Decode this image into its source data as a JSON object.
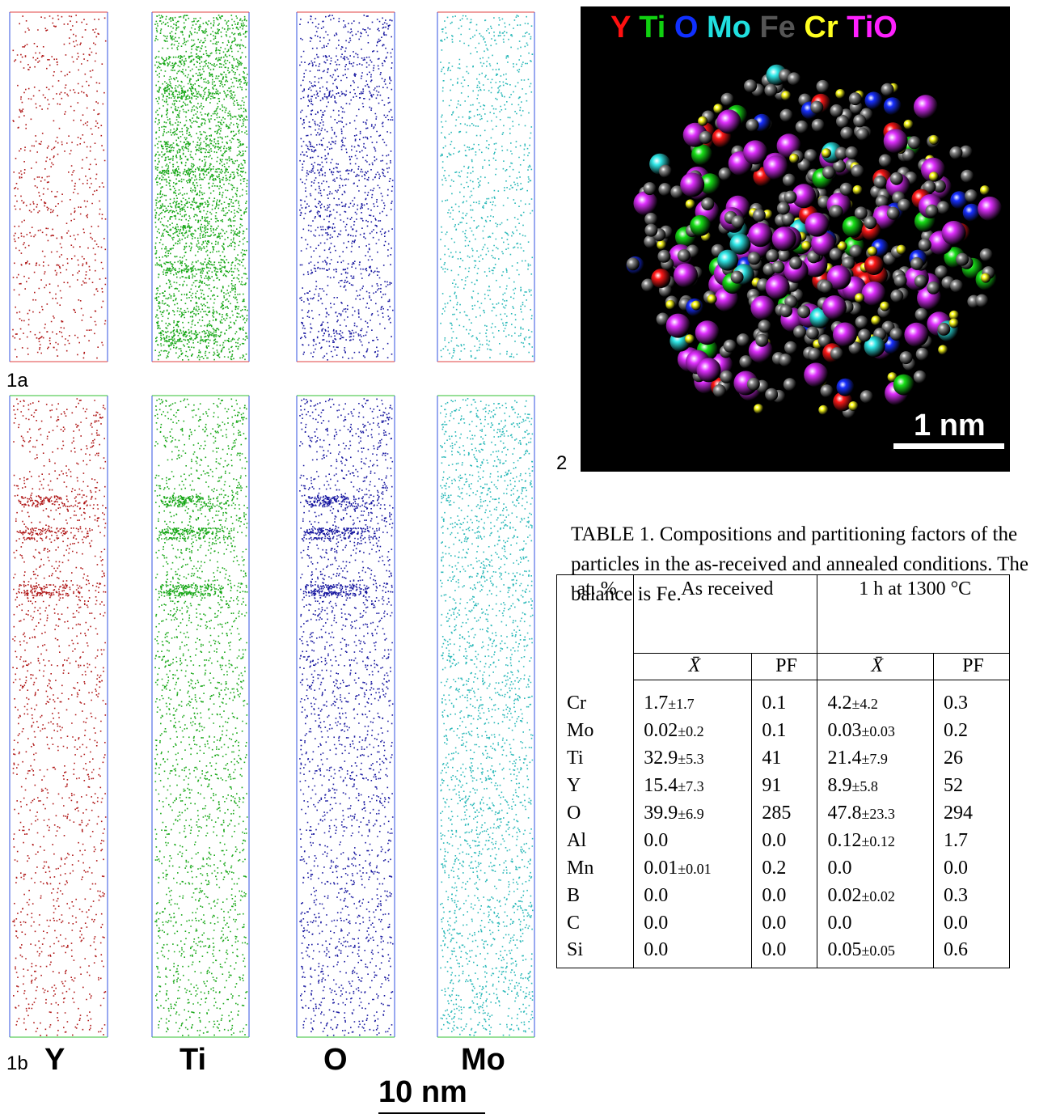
{
  "figure1": {
    "panel_a": "1a",
    "panel_b": "1b",
    "elements": [
      "Y",
      "Ti",
      "O",
      "Mo"
    ],
    "scale": "10 nm"
  },
  "figure2": {
    "panel": "2",
    "legend": [
      "Y",
      "Ti",
      "O",
      "Mo",
      "Fe",
      "Cr",
      "TiO"
    ],
    "scale": "1 nm"
  },
  "table": {
    "caption": "TABLE 1. Compositions and partitioning factors of the particles in the as-received and annealed conditions.  The balance is Fe.",
    "header": {
      "unit": "at. %",
      "groups": [
        "As received",
        "1 h at 1300 °C"
      ],
      "columns": [
        "X̄",
        "PF",
        "X̄",
        "PF"
      ]
    },
    "rows": [
      [
        "Cr",
        {
          "value": "1.7",
          "error": "±1.7"
        },
        "0.1",
        {
          "value": "4.2",
          "error": "±4.2"
        },
        "0.3"
      ],
      [
        "Mo",
        {
          "value": "0.02",
          "error": "±0.2"
        },
        "0.1",
        {
          "value": "0.03",
          "error": "±0.03"
        },
        "0.2"
      ],
      [
        "Ti",
        {
          "value": "32.9",
          "error": "±5.3"
        },
        "41",
        {
          "value": "21.4",
          "error": "±7.9"
        },
        "26"
      ],
      [
        "Y",
        {
          "value": "15.4",
          "error": "±7.3"
        },
        "91",
        {
          "value": "8.9",
          "error": "±5.8"
        },
        "52"
      ],
      [
        "O",
        {
          "value": "39.9",
          "error": "±6.9"
        },
        "285",
        {
          "value": "47.8",
          "error": "±23.3"
        },
        "294"
      ],
      [
        "Al",
        "0.0",
        "0.0",
        {
          "value": "0.12",
          "error": "±0.12"
        },
        "1.7"
      ],
      [
        "Mn",
        {
          "value": "0.01",
          "error": "±0.01"
        },
        "0.2",
        "0.0",
        "0.0"
      ],
      [
        "B",
        "0.0",
        "0.0",
        {
          "value": "0.02",
          "error": "±0.02"
        },
        "0.3"
      ],
      [
        "C",
        "0.0",
        "0.0",
        "0.0",
        "0.0"
      ],
      [
        "Si",
        "0.0",
        "0.0",
        {
          "value": "0.05",
          "error": "±0.05"
        },
        "0.6"
      ]
    ]
  }
}
